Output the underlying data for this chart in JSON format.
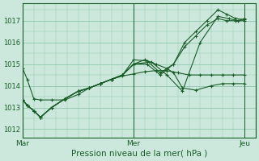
{
  "bg_color": "#cce8dc",
  "grid_color": "#99ccb3",
  "line_color": "#1a5c28",
  "xlabel": "Pression niveau de la mer( hPa )",
  "xtick_labels": [
    "Mar",
    "Mer",
    "Jeu"
  ],
  "xtick_positions": [
    0.0,
    0.5,
    1.0
  ],
  "yticks": [
    1012,
    1013,
    1014,
    1015,
    1016,
    1017
  ],
  "ylim": [
    1011.6,
    1017.8
  ],
  "xlim": [
    0.0,
    1.05
  ],
  "lines": [
    {
      "x": [
        0.0,
        0.02,
        0.05,
        0.08,
        0.13,
        0.19,
        0.25,
        0.3,
        0.35,
        0.4,
        0.45,
        0.5,
        0.55,
        0.6,
        0.65,
        0.7,
        0.75,
        0.8,
        0.85,
        0.9,
        0.95,
        1.0
      ],
      "y": [
        1014.8,
        1014.3,
        1013.4,
        1013.35,
        1013.35,
        1013.35,
        1013.6,
        1013.9,
        1014.1,
        1014.3,
        1014.45,
        1014.55,
        1014.65,
        1014.7,
        1014.7,
        1014.6,
        1014.5,
        1014.5,
        1014.5,
        1014.5,
        1014.5,
        1014.5
      ]
    },
    {
      "x": [
        0.0,
        0.02,
        0.05,
        0.08,
        0.13,
        0.19,
        0.25,
        0.3,
        0.35,
        0.4,
        0.45,
        0.5,
        0.55,
        0.6,
        0.65,
        0.68,
        0.72,
        0.78,
        0.85,
        0.9,
        0.95,
        1.0
      ],
      "y": [
        1013.35,
        1013.1,
        1012.85,
        1012.55,
        1013.0,
        1013.4,
        1013.75,
        1013.9,
        1014.1,
        1014.3,
        1014.5,
        1015.0,
        1015.2,
        1015.0,
        1014.8,
        1014.6,
        1013.9,
        1013.8,
        1014.0,
        1014.1,
        1014.1,
        1014.1
      ]
    },
    {
      "x": [
        0.0,
        0.02,
        0.05,
        0.08,
        0.13,
        0.19,
        0.25,
        0.3,
        0.35,
        0.4,
        0.45,
        0.5,
        0.58,
        0.65,
        0.72,
        0.8,
        0.88,
        0.93,
        0.97,
        1.0
      ],
      "y": [
        1013.35,
        1013.1,
        1012.85,
        1012.55,
        1013.0,
        1013.4,
        1013.75,
        1013.9,
        1014.1,
        1014.3,
        1014.5,
        1015.0,
        1015.1,
        1014.5,
        1013.75,
        1016.0,
        1017.2,
        1017.1,
        1017.0,
        1017.1
      ]
    },
    {
      "x": [
        0.0,
        0.02,
        0.05,
        0.08,
        0.13,
        0.19,
        0.25,
        0.3,
        0.35,
        0.4,
        0.45,
        0.5,
        0.56,
        0.62,
        0.68,
        0.73,
        0.78,
        0.83,
        0.88,
        0.92,
        0.96,
        1.0
      ],
      "y": [
        1013.35,
        1013.1,
        1012.85,
        1012.55,
        1013.0,
        1013.4,
        1013.75,
        1013.9,
        1014.1,
        1014.3,
        1014.5,
        1015.2,
        1015.15,
        1014.6,
        1015.0,
        1016.0,
        1016.5,
        1017.0,
        1017.5,
        1017.3,
        1017.1,
        1017.05
      ]
    },
    {
      "x": [
        0.0,
        0.02,
        0.05,
        0.08,
        0.13,
        0.19,
        0.25,
        0.3,
        0.35,
        0.4,
        0.45,
        0.5,
        0.56,
        0.62,
        0.68,
        0.73,
        0.78,
        0.83,
        0.88,
        0.92,
        0.96,
        1.0
      ],
      "y": [
        1013.35,
        1013.1,
        1012.85,
        1012.55,
        1013.0,
        1013.4,
        1013.75,
        1013.9,
        1014.1,
        1014.3,
        1014.5,
        1015.0,
        1015.0,
        1014.5,
        1015.0,
        1015.8,
        1016.3,
        1016.8,
        1017.1,
        1017.0,
        1017.0,
        1017.0
      ]
    }
  ]
}
